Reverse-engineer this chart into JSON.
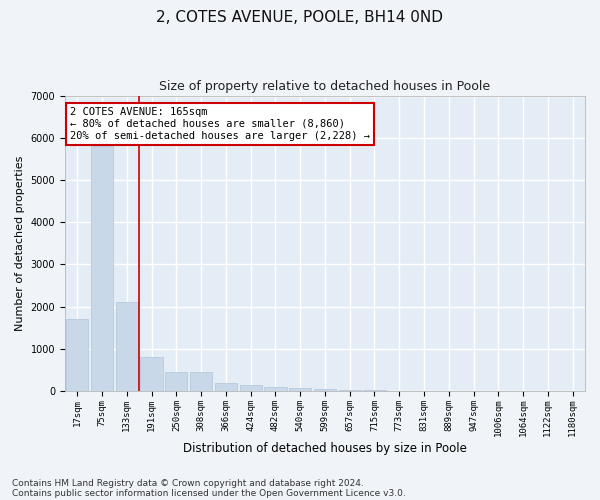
{
  "title": "2, COTES AVENUE, POOLE, BH14 0ND",
  "subtitle": "Size of property relative to detached houses in Poole",
  "xlabel": "Distribution of detached houses by size in Poole",
  "ylabel": "Number of detached properties",
  "bar_color": "#c8d8e8",
  "bar_edge_color": "#b0c4d8",
  "vline_color": "#cc0000",
  "annotation_text": "2 COTES AVENUE: 165sqm\n← 80% of detached houses are smaller (8,860)\n20% of semi-detached houses are larger (2,228) →",
  "bins": [
    "17sqm",
    "75sqm",
    "133sqm",
    "191sqm",
    "250sqm",
    "308sqm",
    "366sqm",
    "424sqm",
    "482sqm",
    "540sqm",
    "599sqm",
    "657sqm",
    "715sqm",
    "773sqm",
    "831sqm",
    "889sqm",
    "947sqm",
    "1006sqm",
    "1064sqm",
    "1122sqm",
    "1180sqm"
  ],
  "values": [
    1700,
    5800,
    2100,
    800,
    460,
    460,
    190,
    140,
    95,
    65,
    45,
    28,
    18,
    8,
    4,
    2,
    1,
    1,
    0,
    0,
    0
  ],
  "vline_index": 2,
  "ylim": [
    0,
    7000
  ],
  "yticks": [
    0,
    1000,
    2000,
    3000,
    4000,
    5000,
    6000,
    7000
  ],
  "footer1": "Contains HM Land Registry data © Crown copyright and database right 2024.",
  "footer2": "Contains public sector information licensed under the Open Government Licence v3.0.",
  "bg_color": "#f0f4f8",
  "plot_bg_color": "#e4edf5",
  "grid_color": "#ffffff",
  "title_fontsize": 11,
  "subtitle_fontsize": 9,
  "tick_fontsize": 6.5,
  "ylabel_fontsize": 8,
  "xlabel_fontsize": 8.5,
  "footer_fontsize": 6.5,
  "annot_fontsize": 7.5
}
